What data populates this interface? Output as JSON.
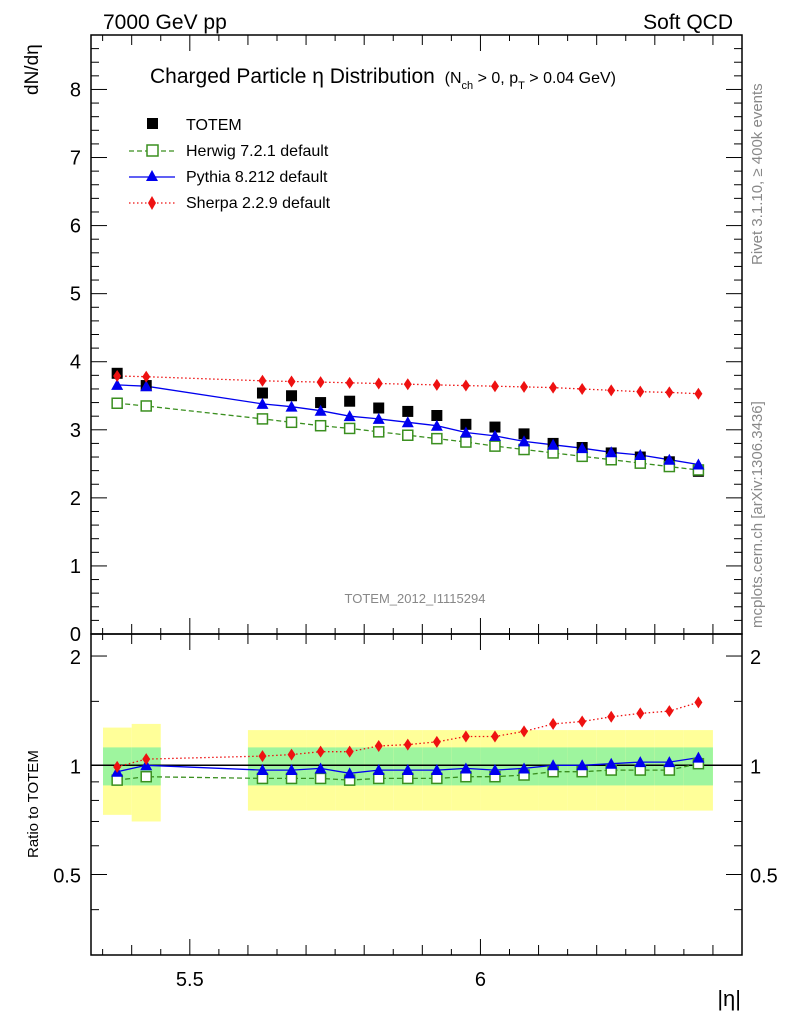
{
  "header": {
    "left": "7000 GeV pp",
    "right": "Soft QCD"
  },
  "side_labels": {
    "rivet": "Rivet 3.1.10, ≥ 400k events",
    "mcplots": "mcplots.cern.ch [arXiv:1306.3436]"
  },
  "chart_data": {
    "type": "scatter",
    "title_main": "Charged Particle η Distribution",
    "title_sub": "(N",
    "title_sub_ch": "ch",
    "title_sub_mid": " > 0, p",
    "title_sub_t": "T",
    "title_sub_end": " > 0.04 GeV)",
    "watermark": "TOTEM_2012_I1115294",
    "xlabel": "|η|",
    "ylabel_main": "dN/dη",
    "ylabel_ratio": "Ratio to TOTEM",
    "xlim": [
      5.33,
      6.45
    ],
    "ylim_main": [
      0,
      8.8
    ],
    "ylim_ratio": [
      0.3,
      2.3
    ],
    "x_ticks": [
      "5.5",
      "6"
    ],
    "x_tick_values": [
      5.5,
      6.0
    ],
    "y_ticks_main": [
      "0",
      "1",
      "2",
      "3",
      "4",
      "5",
      "6",
      "7",
      "8"
    ],
    "y_ticks_ratio": [
      "0.5",
      "1",
      "2"
    ],
    "y_tick_values_ratio": [
      0.5,
      1,
      2
    ],
    "x": [
      5.375,
      5.425,
      5.625,
      5.675,
      5.725,
      5.775,
      5.825,
      5.875,
      5.925,
      5.975,
      6.025,
      6.075,
      6.125,
      6.175,
      6.225,
      6.275,
      6.325,
      6.375
    ],
    "series": [
      {
        "name": "TOTEM",
        "values": [
          3.83,
          3.65,
          3.54,
          3.5,
          3.4,
          3.42,
          3.32,
          3.27,
          3.21,
          3.08,
          3.04,
          2.94,
          2.8,
          2.74,
          2.66,
          2.6,
          2.53,
          2.39
        ]
      },
      {
        "name": "Herwig 7.2.1 default",
        "values": [
          3.39,
          3.35,
          3.16,
          3.11,
          3.06,
          3.02,
          2.97,
          2.92,
          2.87,
          2.82,
          2.76,
          2.71,
          2.66,
          2.61,
          2.56,
          2.51,
          2.46,
          2.41
        ]
      },
      {
        "name": "Pythia 8.212 default",
        "values": [
          3.66,
          3.64,
          3.38,
          3.34,
          3.28,
          3.2,
          3.16,
          3.11,
          3.06,
          2.96,
          2.91,
          2.83,
          2.78,
          2.73,
          2.67,
          2.63,
          2.56,
          2.49
        ]
      },
      {
        "name": "Sherpa 2.2.9 default",
        "values": [
          3.79,
          3.78,
          3.72,
          3.71,
          3.7,
          3.69,
          3.68,
          3.67,
          3.66,
          3.65,
          3.64,
          3.63,
          3.62,
          3.6,
          3.58,
          3.56,
          3.55,
          3.53
        ]
      }
    ],
    "ratios": [
      {
        "name": "Herwig 7.2.1 default",
        "values": [
          0.91,
          0.93,
          0.92,
          0.92,
          0.92,
          0.91,
          0.92,
          0.92,
          0.92,
          0.93,
          0.93,
          0.94,
          0.96,
          0.96,
          0.97,
          0.97,
          0.97,
          1.01
        ]
      },
      {
        "name": "Pythia 8.212 default",
        "values": [
          0.96,
          1.0,
          0.97,
          0.97,
          0.98,
          0.95,
          0.97,
          0.97,
          0.97,
          0.98,
          0.97,
          0.98,
          1.0,
          1.0,
          1.01,
          1.02,
          1.02,
          1.05
        ]
      },
      {
        "name": "Sherpa 2.2.9 default",
        "values": [
          0.99,
          1.04,
          1.06,
          1.07,
          1.09,
          1.09,
          1.13,
          1.14,
          1.16,
          1.2,
          1.2,
          1.24,
          1.3,
          1.32,
          1.36,
          1.39,
          1.41,
          1.49
        ]
      }
    ],
    "band_inner": [
      0.12,
      0.12,
      0.12,
      0.12,
      0.12,
      0.12,
      0.12,
      0.12,
      0.12,
      0.12,
      0.12,
      0.12,
      0.12,
      0.12,
      0.12,
      0.12,
      0.12,
      0.12
    ],
    "band_outer": [
      0.27,
      0.3,
      0.25,
      0.25,
      0.25,
      0.25,
      0.25,
      0.25,
      0.25,
      0.25,
      0.25,
      0.25,
      0.25,
      0.25,
      0.25,
      0.25,
      0.25,
      0.25
    ],
    "colors": {
      "TOTEM": "#000000",
      "Herwig 7.2.1 default": "#3a8f1f",
      "Pythia 8.212 default": "#0000ee",
      "Sherpa 2.2.9 default": "#ee1111",
      "band_inner": "#9ef59e",
      "band_outer": "#ffff99"
    }
  }
}
